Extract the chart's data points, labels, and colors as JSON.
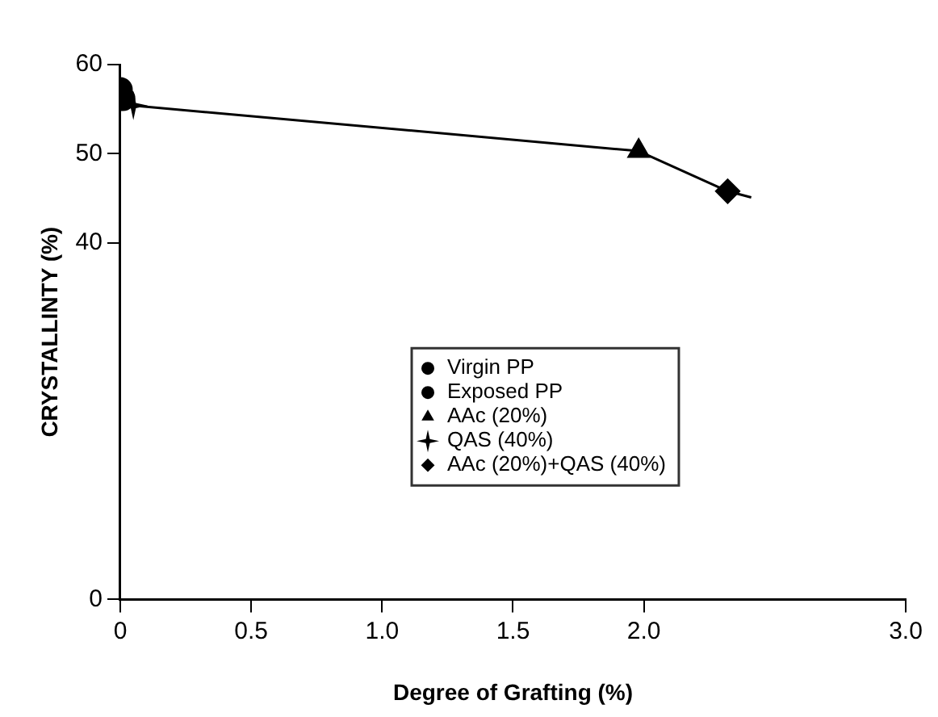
{
  "chart_data": {
    "type": "scatter",
    "xlabel": "Degree of Grafting (%)",
    "ylabel": "CRYSTALLINTY (%)",
    "xlim": [
      0,
      3.0
    ],
    "xticks": [
      0,
      0.5,
      {
        "value": 1,
        "label": "1.0"
      },
      1.5,
      {
        "value": 2,
        "label": "2.0"
      },
      {
        "value": 3,
        "label": "3.0"
      }
    ],
    "ylim": [
      0,
      60
    ],
    "yticks": [
      0,
      40,
      50,
      60
    ],
    "grid": false,
    "legend": "center",
    "series": [
      {
        "type": "line",
        "color": "#000000",
        "x": [
          0.05,
          1.98,
          2.32,
          2.41
        ],
        "values": [
          55.4,
          50.3,
          45.8,
          45.1
        ],
        "marker": "none",
        "line_style": "solid"
      },
      {
        "name": "Virgin PP",
        "color": "#000000",
        "x": [
          0.01
        ],
        "values": [
          56.2
        ],
        "marker": "circle"
      },
      {
        "name": "Exposed PP",
        "color": "#000000",
        "x": [
          0.0
        ],
        "values": [
          57.2
        ],
        "marker": "circle"
      },
      {
        "name": "AAc (20%)",
        "color": "#000000",
        "x": [
          1.98
        ],
        "values": [
          50.3
        ],
        "marker": "triangle"
      },
      {
        "name": "QAS (40%)",
        "color": "#000000",
        "x": [
          0.05
        ],
        "values": [
          55.4
        ],
        "marker": "star"
      },
      {
        "name": "AAc (20%)+QAS (40%)",
        "color": "#000000",
        "x": [
          2.32
        ],
        "values": [
          45.8
        ],
        "marker": "diamond"
      }
    ]
  }
}
